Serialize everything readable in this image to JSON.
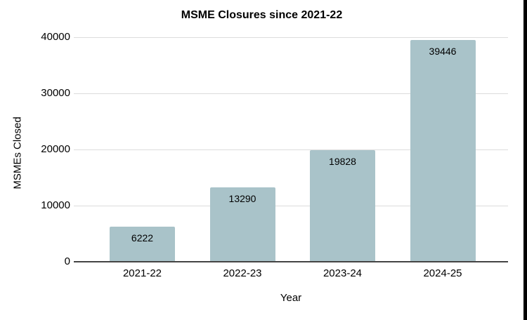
{
  "chart_data": {
    "type": "bar",
    "title": "MSME Closures since 2021-22",
    "xlabel": "Year",
    "ylabel": "MSMEs Closed",
    "categories": [
      "2021-22",
      "2022-23",
      "2023-24",
      "2024-25"
    ],
    "values": [
      6222,
      13290,
      19828,
      39446
    ],
    "value_labels": [
      "6222",
      "13290",
      "19828",
      "39446"
    ],
    "y_ticks": [
      0,
      10000,
      20000,
      30000,
      40000
    ],
    "y_tick_labels": [
      "0",
      "10000",
      "20000",
      "30000",
      "40000"
    ],
    "ylim": [
      0,
      40000
    ],
    "grid": true,
    "legend_position": "none",
    "colors": {
      "bar_fill": "#a9c3c9",
      "gridline": "#dcdcdc",
      "axis_line": "#444444",
      "text": "#000000",
      "right_edge_stripe": "#000000"
    }
  }
}
